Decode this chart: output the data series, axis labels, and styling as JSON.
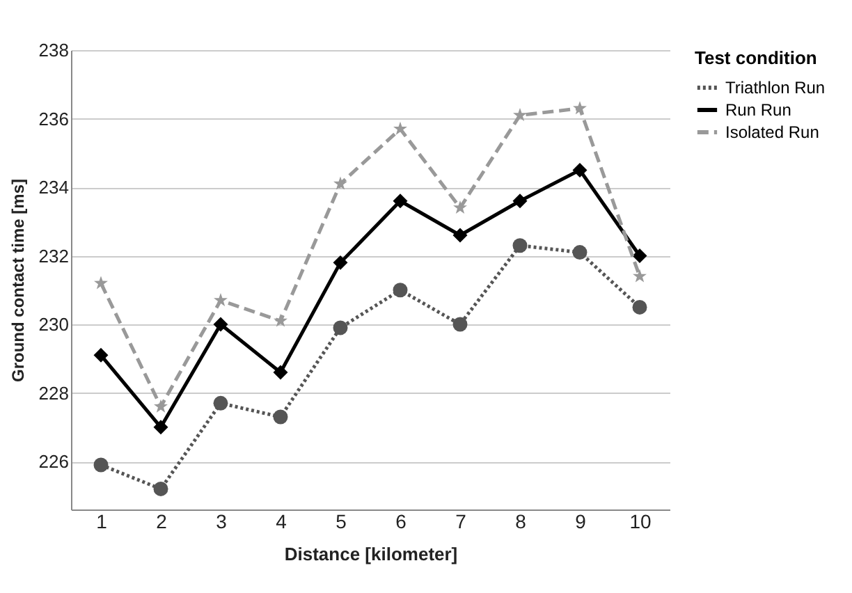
{
  "chart_data": {
    "type": "line",
    "xlabel": "Distance [kilometer]",
    "ylabel": "Ground contact time [ms]",
    "legend_title": "Test condition",
    "categories": [
      "1",
      "2",
      "3",
      "4",
      "5",
      "6",
      "7",
      "8",
      "9",
      "10"
    ],
    "series": [
      {
        "name": "Triathlon Run",
        "color": "#555555",
        "marker": "circle",
        "line_style": "dotted",
        "values": [
          225.9,
          225.2,
          227.7,
          227.3,
          229.9,
          231.0,
          230.0,
          232.3,
          232.1,
          230.5
        ]
      },
      {
        "name": "Run Run",
        "color": "#000000",
        "marker": "diamond",
        "line_style": "solid",
        "values": [
          229.1,
          227.0,
          230.0,
          228.6,
          231.8,
          233.6,
          232.6,
          233.6,
          234.5,
          232.0
        ]
      },
      {
        "name": "Isolated Run",
        "color": "#999999",
        "marker": "star",
        "line_style": "dashed",
        "values": [
          231.2,
          227.6,
          230.7,
          230.1,
          234.1,
          235.7,
          233.4,
          236.1,
          236.3,
          231.4
        ]
      }
    ],
    "ylim": [
      224.6,
      238
    ],
    "yticks": [
      226,
      228,
      230,
      232,
      234,
      236,
      238
    ],
    "grid": "y",
    "legend": "top right"
  }
}
